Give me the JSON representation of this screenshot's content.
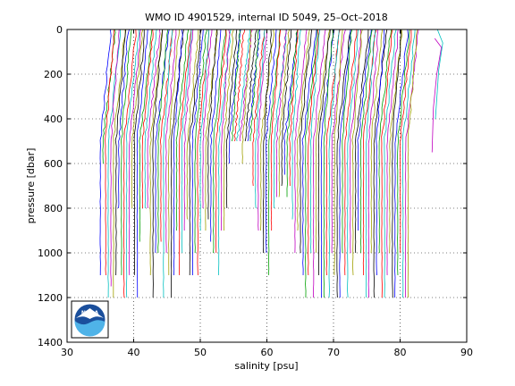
{
  "chart_data": {
    "type": "line",
    "title": "WMO ID 4901529, internal ID 5049, 25–Oct–2018",
    "xlabel": "salinity [psu]",
    "ylabel": "pressure [dbar]",
    "xlim": [
      30,
      90
    ],
    "ylim": [
      0,
      1400
    ],
    "y_reversed": true,
    "grid": true,
    "x_ticks": [
      30,
      40,
      50,
      60,
      70,
      80,
      90
    ],
    "y_ticks": [
      0,
      200,
      400,
      600,
      800,
      1000,
      1200,
      1400
    ],
    "series_colors": [
      "#0000ff",
      "#00a000",
      "#ff0000",
      "#00c0c0",
      "#c000c0",
      "#a0a000",
      "#000000"
    ],
    "profiles": {
      "count": 118,
      "x_start": 35.0,
      "x_step": 0.395,
      "bottom_pressures": [
        1100,
        600,
        1100,
        1200,
        1150,
        1200,
        1100,
        800,
        1100,
        1200,
        1200,
        1100,
        800,
        1100,
        1200,
        950,
        800,
        800,
        800,
        1100,
        1200,
        1000,
        1000,
        950,
        1200,
        1000,
        1100,
        1200,
        1100,
        900,
        1100,
        1000,
        900,
        850,
        1100,
        1100,
        1000,
        1100,
        900,
        800,
        900,
        850,
        950,
        1000,
        1000,
        1100,
        900,
        900,
        800,
        600,
        500,
        500,
        500,
        500,
        600,
        500,
        500,
        500,
        700,
        800,
        900,
        900,
        1000,
        1000,
        1100,
        900,
        800,
        750,
        750,
        700,
        650,
        750,
        700,
        850,
        1000,
        900,
        1000,
        1100,
        1200,
        1100,
        1000,
        1200,
        1000,
        1100,
        1200,
        1200,
        1100,
        1200,
        1000,
        1100,
        1200,
        1200,
        1000,
        1100,
        1200,
        1000,
        1100,
        1000,
        900,
        1000,
        1100,
        1200,
        1200,
        1000,
        1200,
        1100,
        1000,
        1200,
        1200,
        1100,
        1000,
        1200,
        1200,
        1100,
        1000,
        1200,
        1200,
        1200
      ]
    }
  },
  "logo": {
    "text": "NOAA"
  }
}
